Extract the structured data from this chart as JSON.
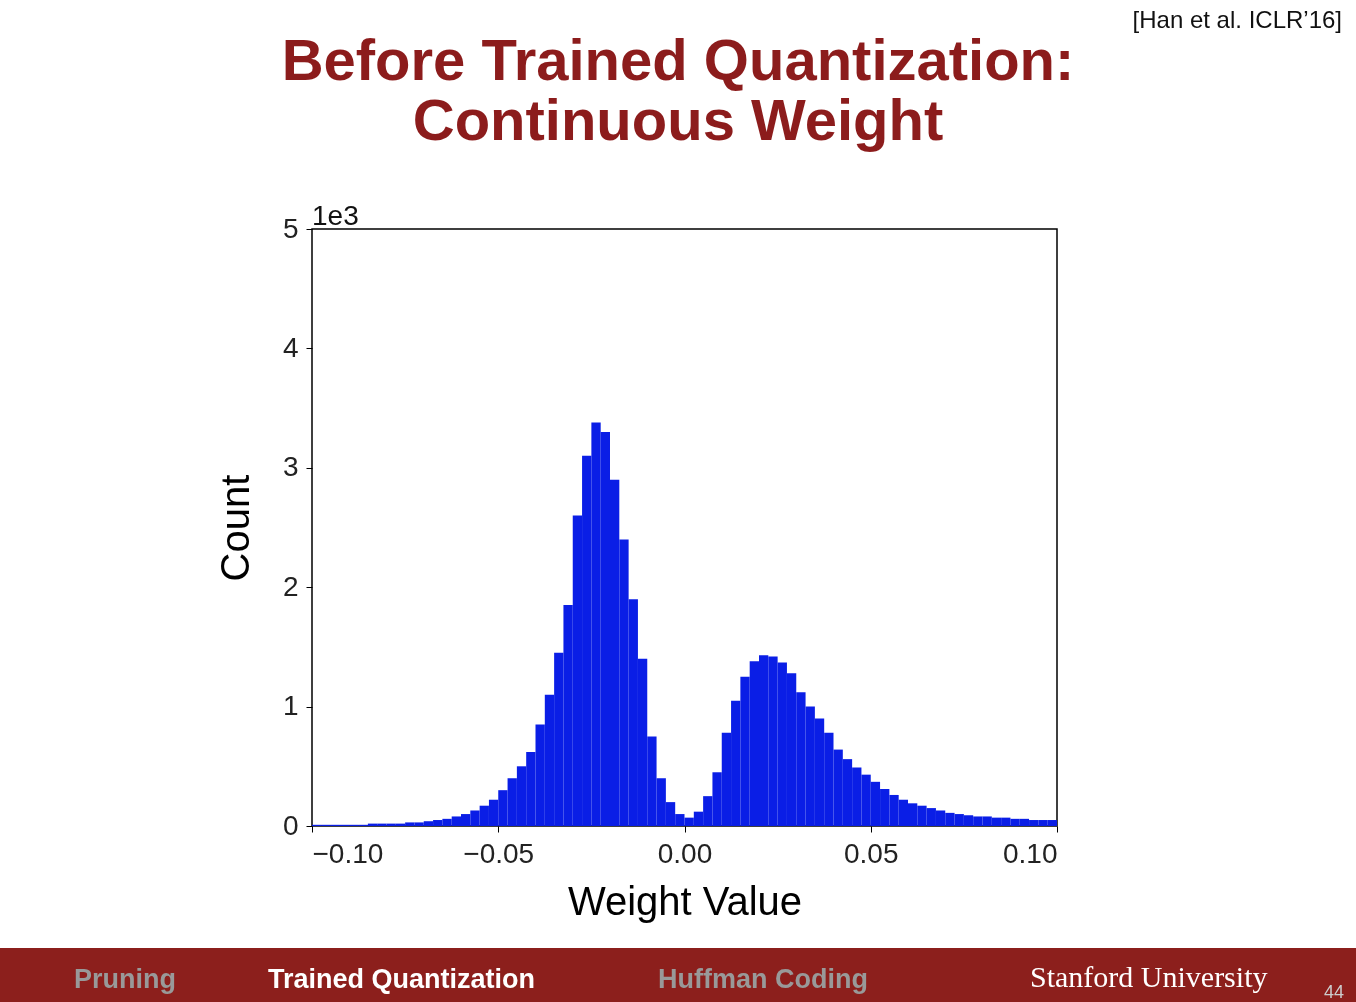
{
  "chart_data": {
    "type": "histogram",
    "title": "Before Trained Quantization:\nContinuous Weight",
    "xlabel": "Weight Value",
    "ylabel": "Count",
    "annotations": [
      "1e3",
      "[Han et al. ICLR’16]",
      "Pruning",
      "Trained Quantization",
      "Huffman Coding",
      "Stanford University",
      "44"
    ],
    "bins": [
      -0.1,
      -0.0975,
      -0.095,
      -0.0925,
      -0.09,
      -0.0875,
      -0.085,
      -0.0825,
      -0.08,
      -0.0775,
      -0.075,
      -0.0725,
      -0.07,
      -0.0675,
      -0.065,
      -0.0625,
      -0.06,
      -0.0575,
      -0.055,
      -0.0525,
      -0.05,
      -0.0475,
      -0.045,
      -0.0425,
      -0.04,
      -0.0375,
      -0.035,
      -0.0325,
      -0.03,
      -0.0275,
      -0.025,
      -0.0225,
      -0.02,
      -0.0175,
      -0.015,
      -0.0125,
      -0.01,
      -0.0075,
      -0.005,
      -0.0025,
      0,
      0.0025,
      0.005,
      0.0075,
      0.01,
      0.0125,
      0.015,
      0.0175,
      0.02,
      0.0225,
      0.025,
      0.0275,
      0.03,
      0.0325,
      0.035,
      0.0375,
      0.04,
      0.0425,
      0.045,
      0.0475,
      0.05,
      0.0525,
      0.055,
      0.0575,
      0.06,
      0.0625,
      0.065,
      0.0675,
      0.07,
      0.0725,
      0.075,
      0.0775,
      0.08,
      0.0825,
      0.085,
      0.0875,
      0.09,
      0.0925,
      0.095,
      0.0975,
      0.1
    ],
    "values": [
      0.01,
      0.01,
      0.01,
      0.01,
      0.01,
      0.01,
      0.02,
      0.02,
      0.02,
      0.02,
      0.03,
      0.03,
      0.04,
      0.05,
      0.06,
      0.08,
      0.1,
      0.13,
      0.17,
      0.22,
      0.3,
      0.4,
      0.5,
      0.62,
      0.85,
      1.1,
      1.45,
      1.85,
      2.6,
      3.1,
      3.38,
      3.3,
      2.9,
      2.4,
      1.9,
      1.4,
      0.75,
      0.4,
      0.2,
      0.1,
      0.07,
      0.12,
      0.25,
      0.45,
      0.78,
      1.05,
      1.25,
      1.38,
      1.43,
      1.42,
      1.37,
      1.28,
      1.12,
      1.0,
      0.9,
      0.78,
      0.64,
      0.56,
      0.49,
      0.43,
      0.37,
      0.31,
      0.26,
      0.22,
      0.19,
      0.17,
      0.15,
      0.13,
      0.11,
      0.1,
      0.09,
      0.08,
      0.08,
      0.07,
      0.07,
      0.06,
      0.06,
      0.05,
      0.05,
      0.05
    ],
    "color": "#0a1ee6",
    "xlim": [
      -0.1,
      0.1
    ],
    "xticks": [
      {
        "value": -0.1,
        "label": "−0.10"
      },
      {
        "value": -0.05,
        "label": "−0.05"
      },
      {
        "value": 0,
        "label": "0.00"
      },
      {
        "value": 0.05,
        "label": "0.05"
      },
      {
        "value": 0.1,
        "label": "0.10"
      }
    ],
    "ylim": [
      0,
      5
    ],
    "yticks": [
      0,
      1,
      2,
      3,
      4,
      5
    ],
    "grid": false
  }
}
